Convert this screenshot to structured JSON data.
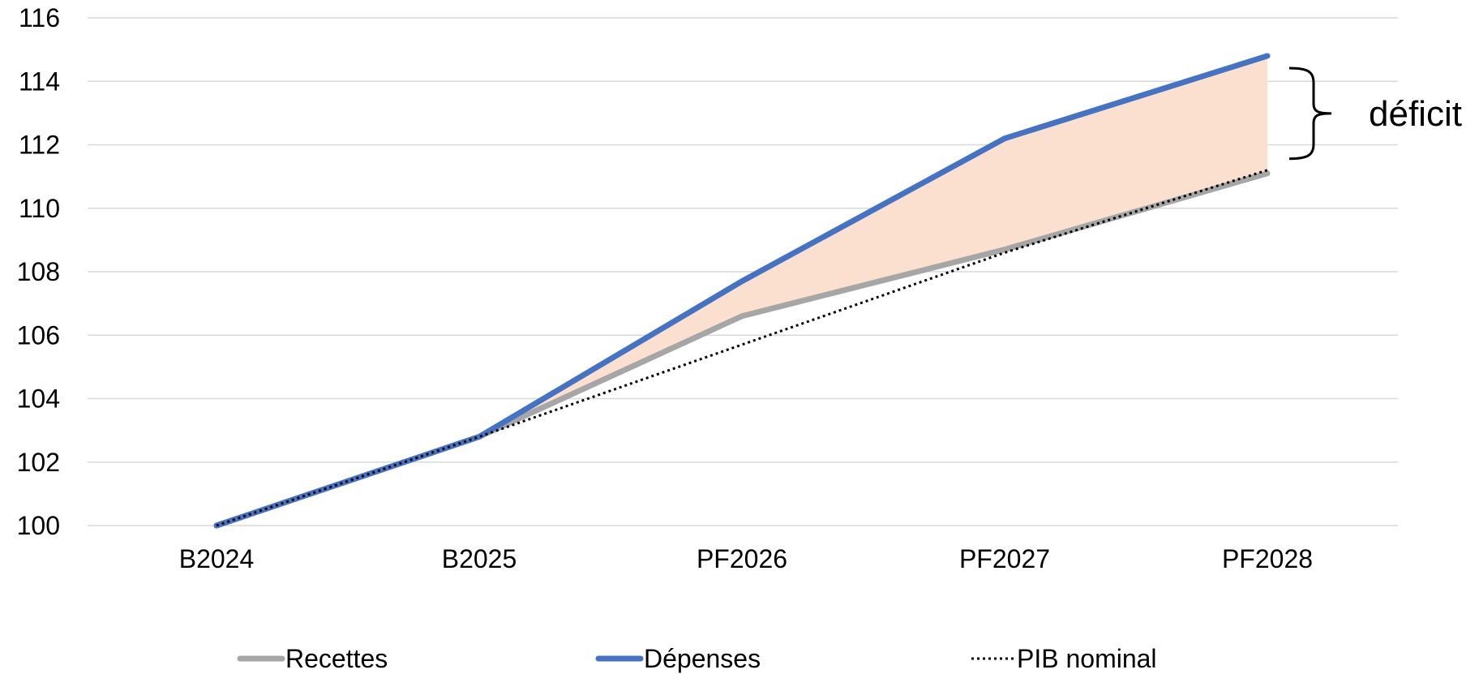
{
  "chart_data": {
    "type": "line",
    "categories": [
      "B2024",
      "B2025",
      "PF2026",
      "PF2027",
      "PF2028"
    ],
    "ylim": [
      100,
      116
    ],
    "yticks": [
      100,
      102,
      104,
      106,
      108,
      110,
      112,
      114,
      116
    ],
    "yticklabels": [
      "100",
      "102",
      "104",
      "106",
      "108",
      "110",
      "112",
      "114",
      "116"
    ],
    "grid": true,
    "legend_position": "bottom",
    "series": [
      {
        "name": "Recettes",
        "values": [
          100,
          102.8,
          106.6,
          108.7,
          111.1
        ],
        "color": "#A6A6A6",
        "style": "solid"
      },
      {
        "name": "Dépenses",
        "values": [
          100,
          102.8,
          107.7,
          112.2,
          114.8
        ],
        "color": "#4472C4",
        "style": "solid"
      },
      {
        "name": "PIB nominal",
        "values": [
          100,
          102.8,
          105.7,
          108.6,
          111.2
        ],
        "color": "#000000",
        "style": "dotted"
      }
    ],
    "fill_between": {
      "upper": "Dépenses",
      "lower": "Recettes",
      "color": "#FBE0D0"
    },
    "annotation": {
      "text": "déficit"
    }
  }
}
